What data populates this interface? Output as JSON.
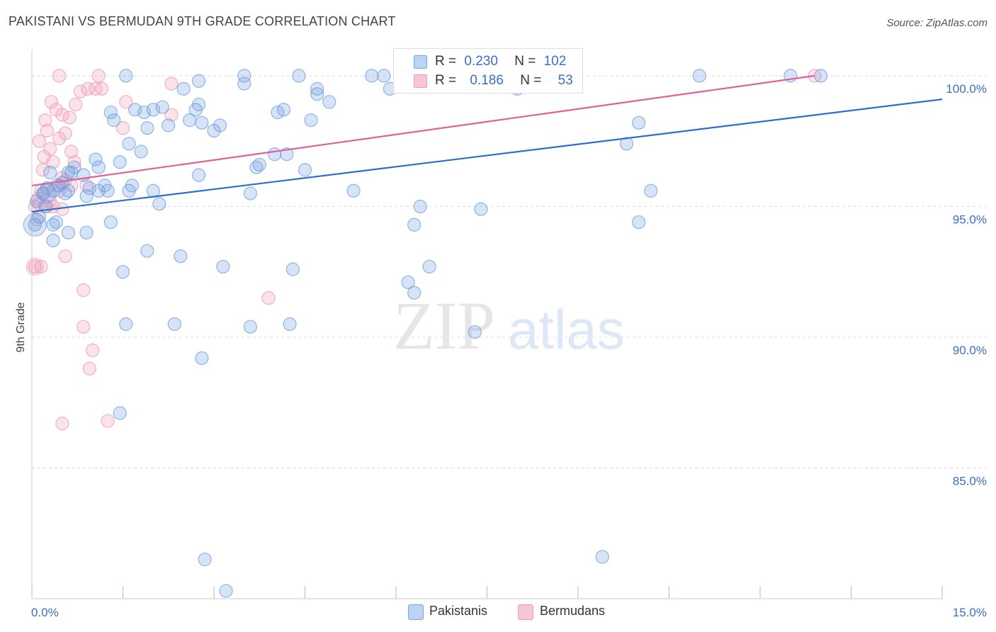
{
  "header": {
    "title": "PAKISTANI VS BERMUDAN 9TH GRADE CORRELATION CHART",
    "source": "Source: ZipAtlas.com"
  },
  "watermark": {
    "zip": "ZIP",
    "atlas": "atlas"
  },
  "legend": {
    "rows": [
      {
        "r_label": "R =",
        "r_value": "0.230",
        "n_label": "N =",
        "n_value": "102"
      },
      {
        "r_label": "R =",
        "r_value": "0.186",
        "n_label": "N =",
        "n_value": "53"
      }
    ]
  },
  "bottom_legend": {
    "pakistanis": "Pakistanis",
    "bermudans": "Bermudans"
  },
  "chart_data": {
    "type": "scatter",
    "title": "PAKISTANI VS BERMUDAN 9TH GRADE CORRELATION CHART",
    "xlabel": "",
    "ylabel": "9th Grade",
    "xlim": [
      0,
      15
    ],
    "ylim": [
      80.0,
      101.0
    ],
    "x_tick_labels": [
      "0.0%",
      "15.0%"
    ],
    "y_ticks": [
      85,
      90,
      95,
      100
    ],
    "y_tick_labels": [
      "85.0%",
      "90.0%",
      "95.0%",
      "100.0%"
    ],
    "colors": {
      "pakistanis": "#6f9fe0",
      "bermudans": "#ef9ab4",
      "pak_line": "#2d6fcd",
      "ber_line": "#e0609a"
    },
    "series": [
      {
        "name": "Pakistanis",
        "R": 0.23,
        "N": 102,
        "trend": {
          "x": [
            0,
            15
          ],
          "y": [
            94.8,
            99.1
          ]
        },
        "points": [
          [
            0.05,
            94.3
          ],
          [
            0.08,
            95.2
          ],
          [
            0.12,
            94.6
          ],
          [
            0.18,
            95.5
          ],
          [
            0.22,
            95.0
          ],
          [
            0.25,
            95.7
          ],
          [
            0.3,
            96.3
          ],
          [
            0.35,
            95.6
          ],
          [
            0.4,
            94.4
          ],
          [
            0.45,
            95.8
          ],
          [
            0.5,
            95.9
          ],
          [
            0.55,
            95.5
          ],
          [
            0.6,
            96.3
          ],
          [
            0.65,
            96.3
          ],
          [
            0.7,
            96.5
          ],
          [
            0.85,
            96.2
          ],
          [
            0.95,
            95.7
          ],
          [
            1.05,
            96.8
          ],
          [
            1.1,
            96.5
          ],
          [
            1.2,
            95.8
          ],
          [
            1.25,
            95.6
          ],
          [
            1.3,
            98.6
          ],
          [
            1.35,
            98.3
          ],
          [
            1.45,
            96.7
          ],
          [
            1.6,
            97.4
          ],
          [
            1.7,
            98.7
          ],
          [
            1.8,
            97.1
          ],
          [
            1.85,
            98.6
          ],
          [
            1.9,
            98.0
          ],
          [
            2.0,
            98.7
          ],
          [
            2.15,
            98.8
          ],
          [
            2.25,
            98.1
          ],
          [
            2.5,
            99.5
          ],
          [
            2.6,
            98.3
          ],
          [
            2.7,
            98.7
          ],
          [
            2.75,
            98.9
          ],
          [
            2.8,
            98.2
          ],
          [
            3.0,
            97.9
          ],
          [
            3.1,
            98.1
          ],
          [
            3.5,
            99.7
          ],
          [
            3.6,
            95.5
          ],
          [
            3.7,
            96.5
          ],
          [
            3.75,
            96.6
          ],
          [
            4.0,
            97.0
          ],
          [
            4.05,
            98.6
          ],
          [
            4.15,
            98.7
          ],
          [
            4.4,
            100.0
          ],
          [
            4.6,
            98.3
          ],
          [
            4.9,
            99.0
          ],
          [
            5.3,
            95.6
          ],
          [
            5.6,
            100.0
          ],
          [
            5.8,
            100.0
          ],
          [
            5.9,
            99.5
          ],
          [
            6.4,
            95.0
          ],
          [
            6.2,
            100.0
          ],
          [
            0.6,
            95.6
          ],
          [
            0.9,
            95.4
          ],
          [
            1.6,
            95.6
          ],
          [
            2.1,
            95.1
          ],
          [
            0.35,
            94.3
          ],
          [
            0.9,
            94.0
          ],
          [
            0.6,
            94.0
          ],
          [
            1.1,
            95.6
          ],
          [
            1.3,
            94.4
          ],
          [
            1.65,
            95.8
          ],
          [
            2.75,
            99.8
          ],
          [
            4.7,
            99.3
          ],
          [
            4.2,
            97.0
          ],
          [
            2.0,
            95.6
          ],
          [
            2.75,
            96.2
          ],
          [
            4.5,
            96.4
          ],
          [
            8.0,
            99.5
          ],
          [
            9.8,
            97.4
          ],
          [
            10.2,
            95.6
          ],
          [
            7.5,
            100.0
          ],
          [
            8.5,
            100.0
          ],
          [
            11.0,
            100.0
          ],
          [
            12.5,
            100.0
          ],
          [
            13.0,
            100.0
          ],
          [
            10.0,
            98.2
          ],
          [
            0.35,
            93.7
          ],
          [
            3.5,
            100.0
          ],
          [
            6.3,
            94.3
          ],
          [
            7.4,
            94.9
          ],
          [
            10.0,
            94.4
          ],
          [
            1.9,
            93.3
          ],
          [
            2.45,
            93.1
          ],
          [
            3.15,
            92.7
          ],
          [
            4.3,
            92.6
          ],
          [
            6.55,
            92.7
          ],
          [
            6.2,
            92.1
          ],
          [
            6.3,
            91.7
          ],
          [
            1.5,
            92.5
          ],
          [
            7.3,
            90.2
          ],
          [
            1.55,
            90.5
          ],
          [
            2.35,
            90.5
          ],
          [
            3.6,
            90.4
          ],
          [
            4.25,
            90.5
          ],
          [
            2.8,
            89.2
          ],
          [
            1.45,
            87.1
          ],
          [
            2.85,
            81.5
          ],
          [
            9.4,
            81.6
          ],
          [
            3.2,
            80.3
          ],
          [
            4.7,
            99.5
          ],
          [
            1.55,
            100.0
          ]
        ]
      },
      {
        "name": "Bermudans",
        "R": 0.186,
        "N": 53,
        "trend": {
          "x": [
            0,
            12.9
          ],
          "y": [
            95.8,
            100.0
          ]
        },
        "points": [
          [
            0.05,
            95.0
          ],
          [
            0.1,
            95.3
          ],
          [
            0.12,
            95.1
          ],
          [
            0.15,
            95.6
          ],
          [
            0.2,
            95.5
          ],
          [
            0.25,
            95.0
          ],
          [
            0.3,
            95.2
          ],
          [
            0.35,
            95.0
          ],
          [
            0.4,
            95.8
          ],
          [
            0.45,
            95.6
          ],
          [
            0.5,
            96.1
          ],
          [
            0.55,
            96.0
          ],
          [
            0.08,
            94.5
          ],
          [
            0.12,
            97.5
          ],
          [
            0.18,
            96.4
          ],
          [
            0.2,
            96.9
          ],
          [
            0.25,
            97.9
          ],
          [
            0.3,
            97.2
          ],
          [
            0.35,
            96.7
          ],
          [
            0.45,
            97.6
          ],
          [
            0.55,
            97.8
          ],
          [
            0.65,
            97.1
          ],
          [
            0.7,
            96.7
          ],
          [
            0.22,
            98.3
          ],
          [
            0.32,
            99.0
          ],
          [
            0.4,
            98.7
          ],
          [
            0.5,
            98.5
          ],
          [
            0.62,
            98.4
          ],
          [
            0.72,
            98.9
          ],
          [
            0.8,
            99.4
          ],
          [
            0.92,
            99.5
          ],
          [
            1.05,
            99.5
          ],
          [
            1.15,
            99.5
          ],
          [
            0.45,
            100.0
          ],
          [
            1.1,
            100.0
          ],
          [
            1.5,
            98.0
          ],
          [
            2.3,
            99.7
          ],
          [
            2.3,
            98.5
          ],
          [
            1.55,
            99.0
          ],
          [
            0.9,
            95.8
          ],
          [
            0.5,
            94.9
          ],
          [
            0.55,
            93.1
          ],
          [
            0.05,
            92.7
          ],
          [
            0.15,
            92.7
          ],
          [
            0.85,
            91.8
          ],
          [
            3.9,
            91.5
          ],
          [
            0.85,
            90.4
          ],
          [
            1.0,
            89.5
          ],
          [
            0.95,
            88.8
          ],
          [
            1.25,
            86.8
          ],
          [
            0.5,
            86.7
          ],
          [
            12.9,
            100.0
          ],
          [
            0.65,
            95.8
          ]
        ]
      }
    ]
  }
}
